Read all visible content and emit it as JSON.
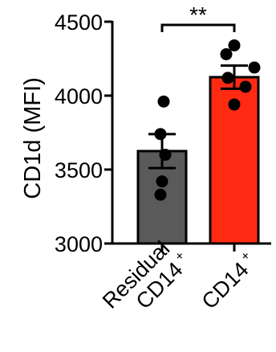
{
  "chart_data": {
    "type": "bar",
    "ylabel": "CD1d (MFI)",
    "ylim": [
      3000,
      4500
    ],
    "yticks": [
      3000,
      3500,
      4000,
      4500
    ],
    "categories": [
      {
        "lines": [
          "Residual",
          "CD14"
        ],
        "superscript": "+"
      },
      {
        "lines": [
          "CD14"
        ],
        "superscript": "+"
      }
    ],
    "values": [
      3625,
      4125
    ],
    "sem": [
      115,
      78
    ],
    "points": [
      [
        3960,
        3740,
        3600,
        3420,
        3330
      ],
      [
        4340,
        4280,
        4190,
        4120,
        4060,
        3940
      ]
    ],
    "bar_colors": [
      "#5a5a5a",
      "#ff2a12"
    ],
    "significance": "**"
  }
}
